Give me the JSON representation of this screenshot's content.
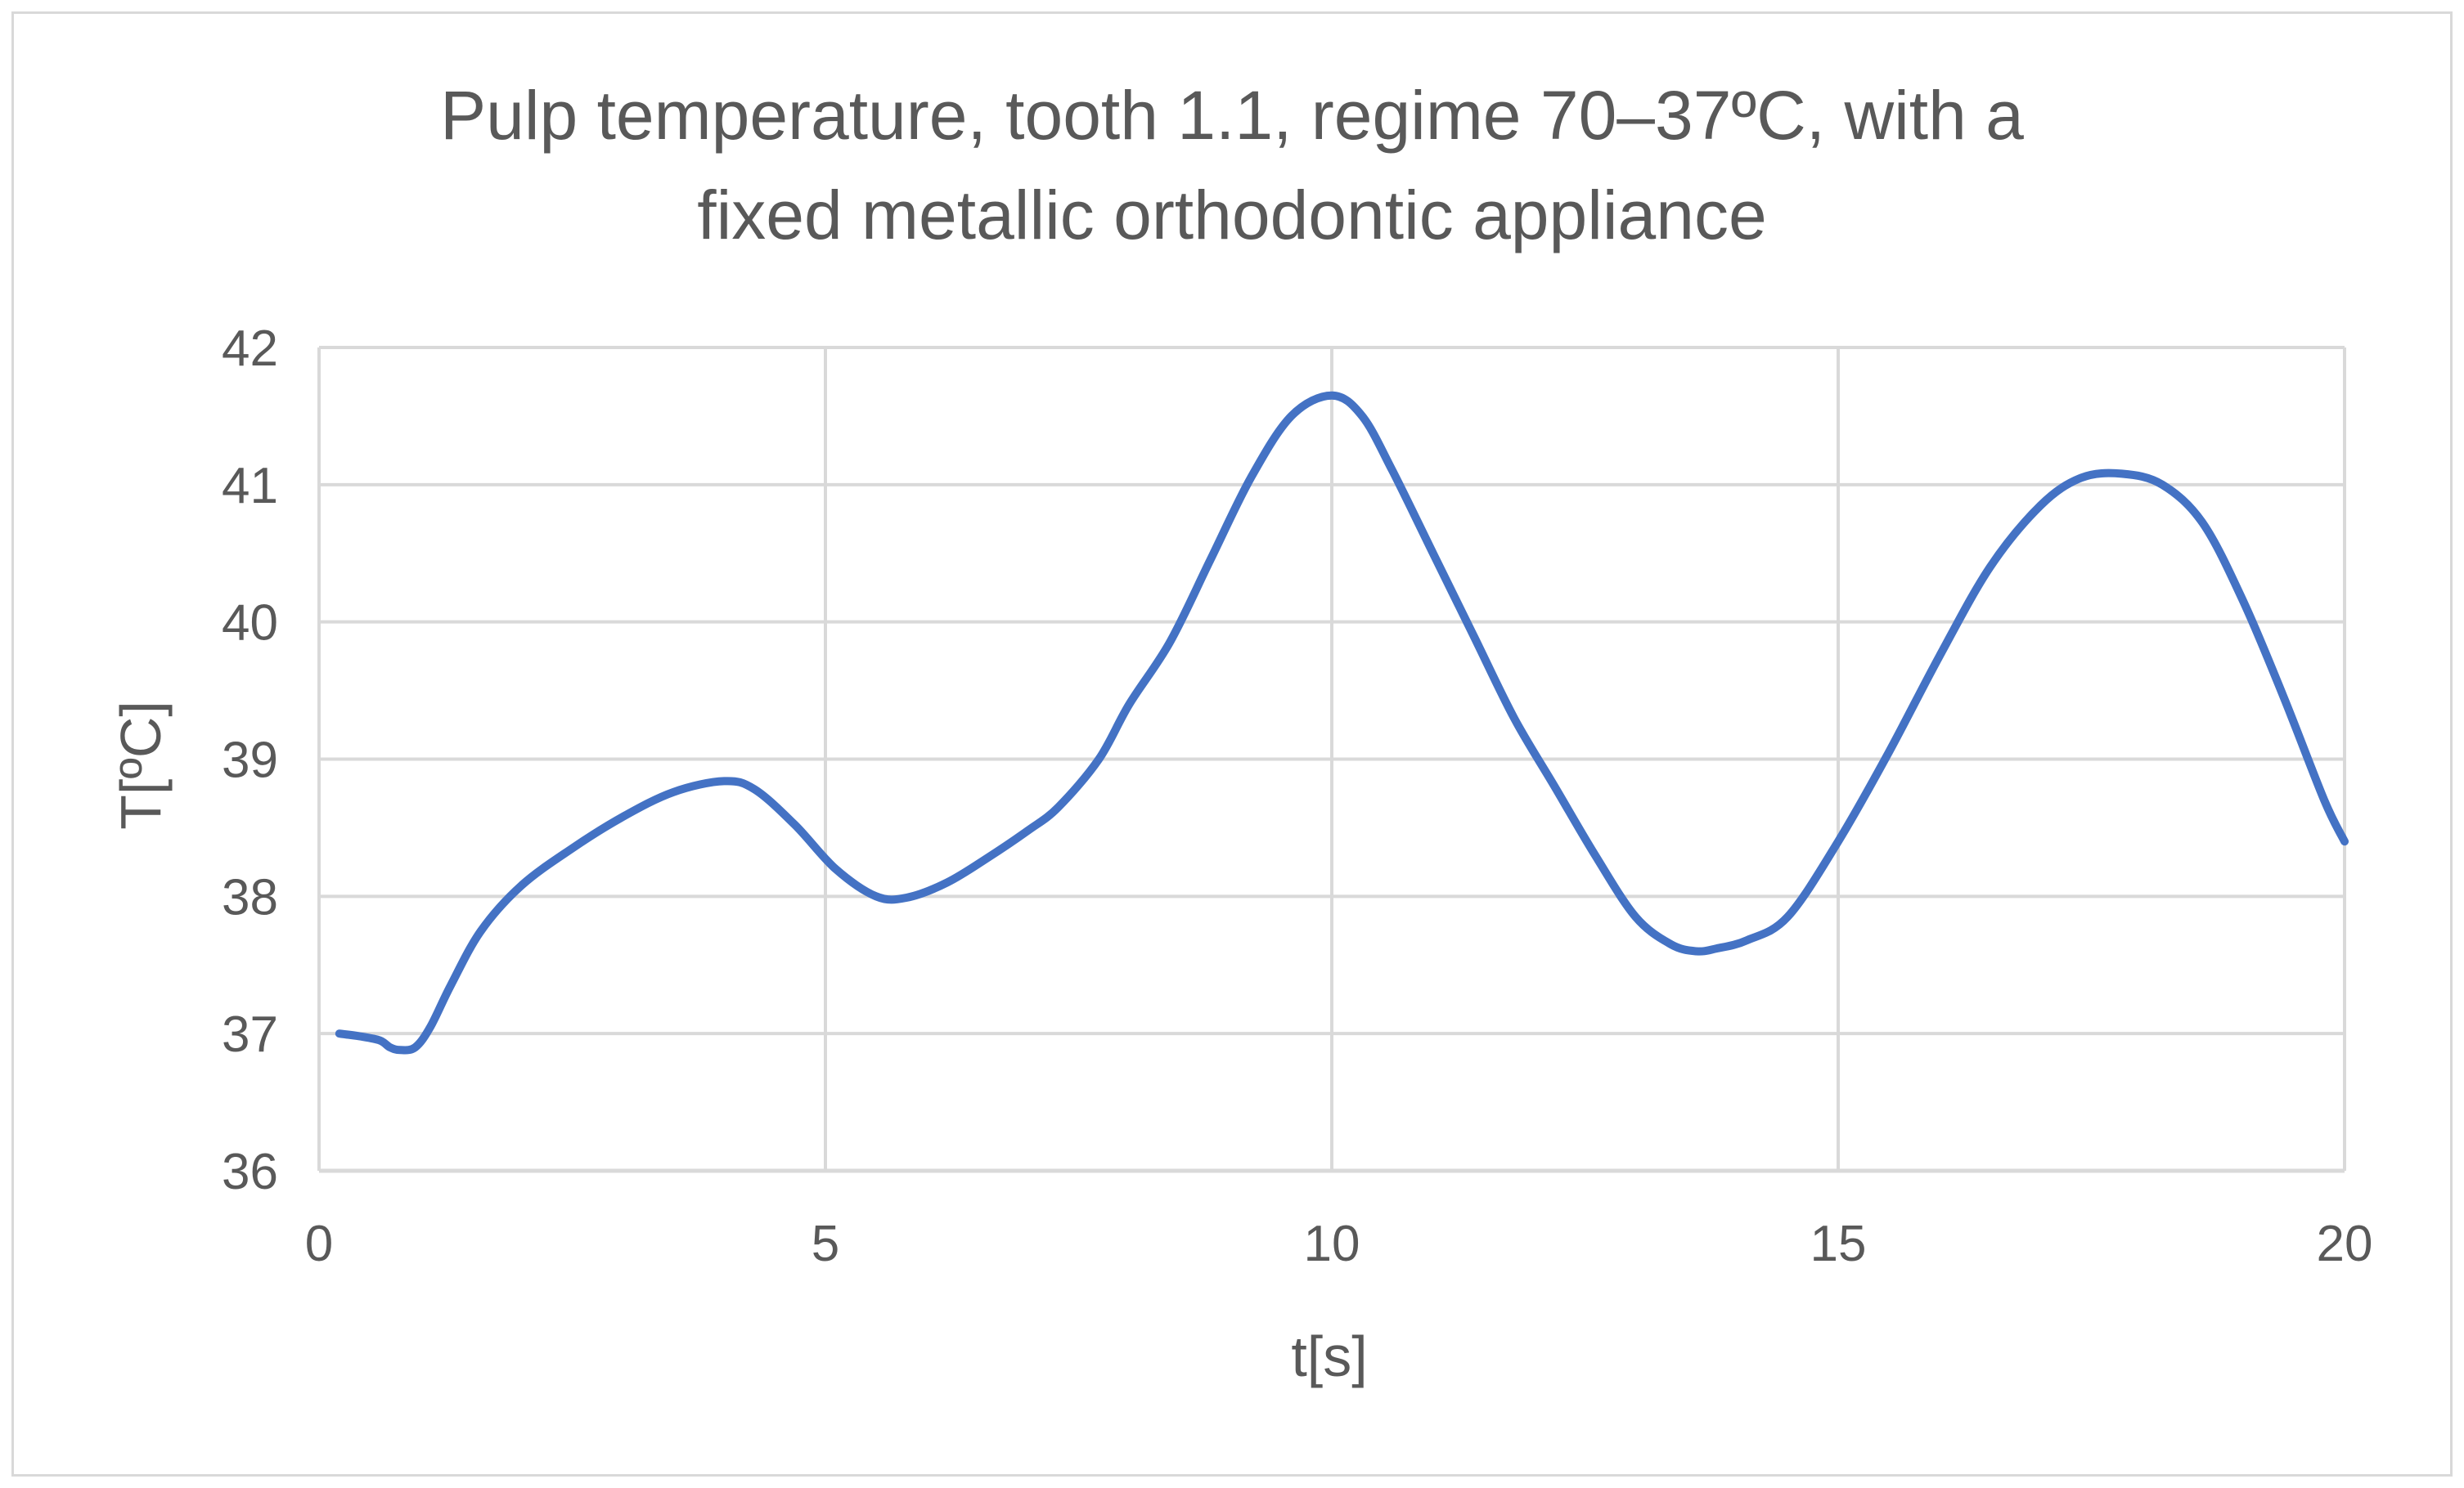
{
  "chart_data": {
    "type": "line",
    "title": [
      "Pulp temperature, tooth 1.1, regime 70–37ºC, with a",
      "fixed metallic orthodontic appliance"
    ],
    "xlabel": "t[s]",
    "ylabel": "T[ºC]",
    "xlim": [
      0,
      20
    ],
    "ylim": [
      36,
      42
    ],
    "x_ticks": [
      "0",
      "5",
      "10",
      "15",
      "20"
    ],
    "y_ticks": [
      "36",
      "37",
      "38",
      "39",
      "40",
      "41",
      "42"
    ],
    "grid": true,
    "legend": "none",
    "series": [
      {
        "color": "#4472c4",
        "x": [
          0.2,
          0.4,
          0.6,
          0.7,
          0.8,
          0.95,
          1.1,
          1.3,
          1.6,
          2.0,
          2.5,
          3.0,
          3.5,
          4.0,
          4.3,
          4.7,
          5.1,
          5.5,
          5.8,
          6.2,
          6.6,
          7.0,
          7.3,
          7.7,
          8.0,
          8.4,
          8.8,
          9.2,
          9.6,
          10.0,
          10.3,
          10.6,
          11.0,
          11.4,
          11.8,
          12.2,
          12.6,
          13.0,
          13.35,
          13.6,
          13.8,
          14.1,
          14.5,
          15.0,
          15.5,
          16.0,
          16.5,
          17.0,
          17.4,
          17.8,
          18.2,
          18.6,
          19.0,
          19.4,
          19.8,
          20.0
        ],
        "y": [
          37.0,
          36.98,
          36.95,
          36.9,
          36.88,
          36.9,
          37.05,
          37.35,
          37.75,
          38.08,
          38.35,
          38.58,
          38.76,
          38.84,
          38.78,
          38.52,
          38.2,
          38.0,
          37.99,
          38.1,
          38.28,
          38.48,
          38.65,
          39.0,
          39.4,
          39.85,
          40.45,
          41.05,
          41.5,
          41.65,
          41.5,
          41.1,
          40.5,
          39.9,
          39.3,
          38.8,
          38.3,
          37.85,
          37.65,
          37.6,
          37.62,
          37.68,
          37.85,
          38.4,
          39.05,
          39.75,
          40.4,
          40.85,
          41.05,
          41.08,
          41.0,
          40.72,
          40.15,
          39.45,
          38.7,
          38.4
        ]
      }
    ]
  }
}
